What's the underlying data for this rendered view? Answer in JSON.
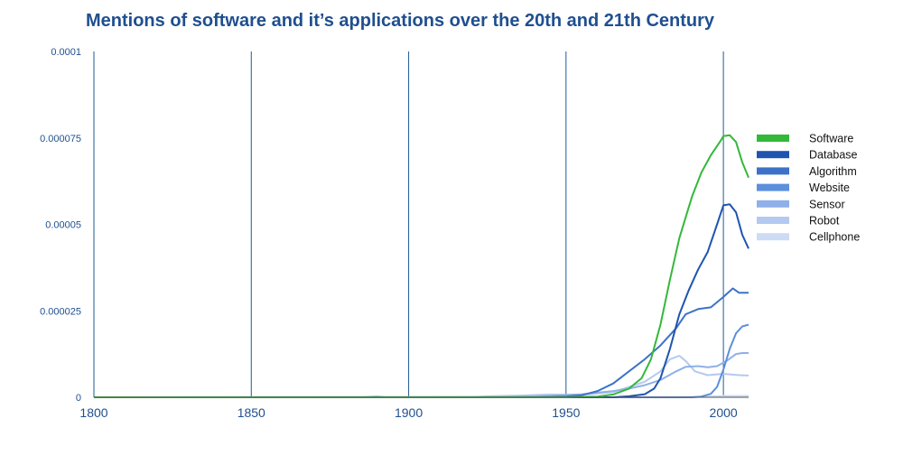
{
  "chart_data": {
    "type": "line",
    "title": "Mentions of software and it’s applications over the 20th and 21th Century",
    "xlabel": "",
    "ylabel": "",
    "xlim": [
      1800,
      2008
    ],
    "ylim": [
      0,
      0.0001
    ],
    "x_ticks": [
      "1800",
      "1850",
      "1900",
      "1950",
      "2000"
    ],
    "y_ticks": [
      "0",
      "0.000025",
      "0.00005",
      "0.000075",
      "0.0001"
    ],
    "grid": "vertical",
    "legend_position": "right",
    "series": [
      {
        "name": "Software",
        "color": "#34b83a",
        "points": [
          [
            1800,
            0
          ],
          [
            1900,
            0
          ],
          [
            1950,
            0
          ],
          [
            1960,
            2e-07
          ],
          [
            1965,
            8e-07
          ],
          [
            1970,
            2.5e-06
          ],
          [
            1974,
            5.5e-06
          ],
          [
            1977,
            1.1e-05
          ],
          [
            1980,
            2.1e-05
          ],
          [
            1983,
            3.4e-05
          ],
          [
            1986,
            4.6e-05
          ],
          [
            1988,
            5.2e-05
          ],
          [
            1990,
            5.8e-05
          ],
          [
            1993,
            6.5e-05
          ],
          [
            1996,
            7e-05
          ],
          [
            1999,
            7.4e-05
          ],
          [
            2000,
            7.55e-05
          ],
          [
            2002,
            7.58e-05
          ],
          [
            2004,
            7.38e-05
          ],
          [
            2006,
            6.8e-05
          ],
          [
            2008,
            6.35e-05
          ]
        ]
      },
      {
        "name": "Database",
        "color": "#1f54b0",
        "points": [
          [
            1800,
            0
          ],
          [
            1950,
            0
          ],
          [
            1965,
            0
          ],
          [
            1970,
            3e-07
          ],
          [
            1975,
            9e-07
          ],
          [
            1978,
            2.5e-06
          ],
          [
            1980,
            5.5e-06
          ],
          [
            1983,
            1.4e-05
          ],
          [
            1986,
            2.4e-05
          ],
          [
            1989,
            3.1e-05
          ],
          [
            1992,
            3.7e-05
          ],
          [
            1995,
            4.2e-05
          ],
          [
            1998,
            5e-05
          ],
          [
            2000,
            5.55e-05
          ],
          [
            2002,
            5.58e-05
          ],
          [
            2004,
            5.35e-05
          ],
          [
            2006,
            4.7e-05
          ],
          [
            2008,
            4.3e-05
          ]
        ]
      },
      {
        "name": "Algorithm",
        "color": "#3d72c8",
        "points": [
          [
            1800,
            0
          ],
          [
            1940,
            0
          ],
          [
            1950,
            2e-07
          ],
          [
            1955,
            6e-07
          ],
          [
            1960,
            1.8e-06
          ],
          [
            1965,
            4e-06
          ],
          [
            1970,
            7.5e-06
          ],
          [
            1975,
            1.1e-05
          ],
          [
            1980,
            1.5e-05
          ],
          [
            1985,
            2e-05
          ],
          [
            1988,
            2.4e-05
          ],
          [
            1992,
            2.55e-05
          ],
          [
            1996,
            2.6e-05
          ],
          [
            2000,
            2.9e-05
          ],
          [
            2003,
            3.15e-05
          ],
          [
            2005,
            3.02e-05
          ],
          [
            2008,
            3.02e-05
          ]
        ]
      },
      {
        "name": "Website",
        "color": "#5c8fdd",
        "points": [
          [
            1800,
            0
          ],
          [
            1990,
            0
          ],
          [
            1993,
            2e-07
          ],
          [
            1996,
            1e-06
          ],
          [
            1998,
            3e-06
          ],
          [
            2000,
            8e-06
          ],
          [
            2002,
            1.4e-05
          ],
          [
            2004,
            1.85e-05
          ],
          [
            2006,
            2.05e-05
          ],
          [
            2008,
            2.1e-05
          ]
        ]
      },
      {
        "name": "Sensor",
        "color": "#8fb0e8",
        "points": [
          [
            1800,
            0
          ],
          [
            1930,
            1e-07
          ],
          [
            1945,
            4e-07
          ],
          [
            1955,
            9e-07
          ],
          [
            1965,
            1.8e-06
          ],
          [
            1970,
            2.5e-06
          ],
          [
            1975,
            3.5e-06
          ],
          [
            1980,
            5e-06
          ],
          [
            1985,
            7.5e-06
          ],
          [
            1988,
            8.8e-06
          ],
          [
            1992,
            9e-06
          ],
          [
            1995,
            8.7e-06
          ],
          [
            1998,
            9e-06
          ],
          [
            2001,
            1.05e-05
          ],
          [
            2004,
            1.25e-05
          ],
          [
            2006,
            1.28e-05
          ],
          [
            2008,
            1.28e-05
          ]
        ]
      },
      {
        "name": "Robot",
        "color": "#b4c9ef",
        "points": [
          [
            1800,
            0
          ],
          [
            1885,
            0
          ],
          [
            1890,
            3e-07
          ],
          [
            1893,
            0
          ],
          [
            1920,
            0
          ],
          [
            1925,
            3e-07
          ],
          [
            1935,
            5e-07
          ],
          [
            1945,
            8e-07
          ],
          [
            1955,
            7e-07
          ],
          [
            1965,
            1.5e-06
          ],
          [
            1975,
            4.5e-06
          ],
          [
            1980,
            7.5e-06
          ],
          [
            1983,
            1.1e-05
          ],
          [
            1986,
            1.2e-05
          ],
          [
            1988,
            1.05e-05
          ],
          [
            1991,
            7.5e-06
          ],
          [
            1995,
            6.4e-06
          ],
          [
            2000,
            6.8e-06
          ],
          [
            2005,
            6.4e-06
          ],
          [
            2008,
            6.3e-06
          ]
        ]
      },
      {
        "name": "Cellphone",
        "color": "#cddcf4",
        "points": [
          [
            1800,
            0
          ],
          [
            1985,
            0
          ],
          [
            1990,
            1e-07
          ],
          [
            1995,
            2e-07
          ],
          [
            2000,
            4e-07
          ],
          [
            2005,
            4e-07
          ],
          [
            2008,
            4e-07
          ]
        ]
      }
    ]
  }
}
